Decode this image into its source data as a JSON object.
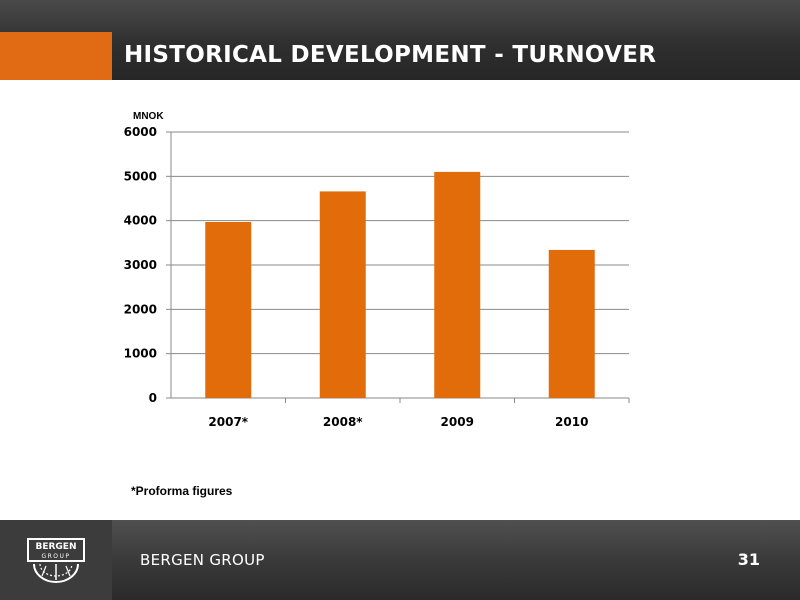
{
  "header": {
    "title": "HISTORICAL DEVELOPMENT - TURNOVER"
  },
  "chart_data": {
    "type": "bar",
    "title": "",
    "ylabel": "MNOK",
    "xlabel": "",
    "categories": [
      "2007*",
      "2008*",
      "2009",
      "2010"
    ],
    "values": [
      3970,
      4660,
      5100,
      3340
    ],
    "ylim": [
      0,
      6000
    ],
    "yticks": [
      0,
      1000,
      2000,
      3000,
      4000,
      5000,
      6000
    ],
    "grid": true,
    "bar_color": "#e36c0a"
  },
  "footnote": "*Proforma figures",
  "footer": {
    "brand": "BERGEN GROUP",
    "page_number": "31",
    "logo_text_top": "BERGEN",
    "logo_text_bottom": "GROUP"
  },
  "colors": {
    "accent": "#e06b14",
    "dark": "#333333"
  }
}
